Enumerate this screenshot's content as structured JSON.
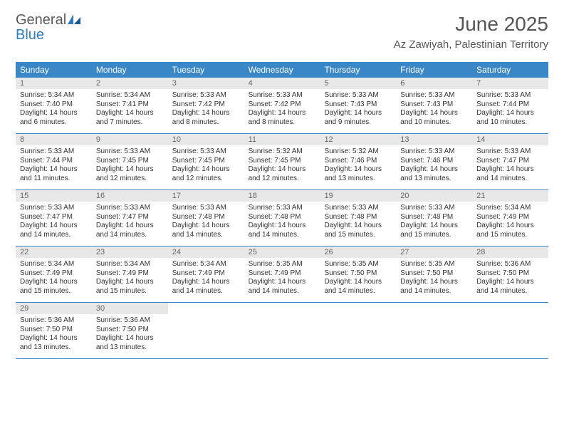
{
  "brand": {
    "word1": "General",
    "word2": "Blue"
  },
  "title": "June 2025",
  "location": "Az Zawiyah, Palestinian Territory",
  "styling": {
    "header_bg": "#3a87c7",
    "header_text": "#ffffff",
    "daynum_bg": "#e8e8e8",
    "daynum_text": "#666666",
    "body_text": "#333333",
    "rule_color": "#3a87c7",
    "font_family": "Arial",
    "daynum_fontsize": 11,
    "body_fontsize": 10,
    "header_fontsize": 12,
    "title_fontsize": 28,
    "location_fontsize": 15,
    "title_color": "#555555"
  },
  "day_headers": [
    "Sunday",
    "Monday",
    "Tuesday",
    "Wednesday",
    "Thursday",
    "Friday",
    "Saturday"
  ],
  "weeks": [
    [
      {
        "n": "1",
        "sr": "Sunrise: 5:34 AM",
        "ss": "Sunset: 7:40 PM",
        "d1": "Daylight: 14 hours",
        "d2": "and 6 minutes."
      },
      {
        "n": "2",
        "sr": "Sunrise: 5:34 AM",
        "ss": "Sunset: 7:41 PM",
        "d1": "Daylight: 14 hours",
        "d2": "and 7 minutes."
      },
      {
        "n": "3",
        "sr": "Sunrise: 5:33 AM",
        "ss": "Sunset: 7:42 PM",
        "d1": "Daylight: 14 hours",
        "d2": "and 8 minutes."
      },
      {
        "n": "4",
        "sr": "Sunrise: 5:33 AM",
        "ss": "Sunset: 7:42 PM",
        "d1": "Daylight: 14 hours",
        "d2": "and 8 minutes."
      },
      {
        "n": "5",
        "sr": "Sunrise: 5:33 AM",
        "ss": "Sunset: 7:43 PM",
        "d1": "Daylight: 14 hours",
        "d2": "and 9 minutes."
      },
      {
        "n": "6",
        "sr": "Sunrise: 5:33 AM",
        "ss": "Sunset: 7:43 PM",
        "d1": "Daylight: 14 hours",
        "d2": "and 10 minutes."
      },
      {
        "n": "7",
        "sr": "Sunrise: 5:33 AM",
        "ss": "Sunset: 7:44 PM",
        "d1": "Daylight: 14 hours",
        "d2": "and 10 minutes."
      }
    ],
    [
      {
        "n": "8",
        "sr": "Sunrise: 5:33 AM",
        "ss": "Sunset: 7:44 PM",
        "d1": "Daylight: 14 hours",
        "d2": "and 11 minutes."
      },
      {
        "n": "9",
        "sr": "Sunrise: 5:33 AM",
        "ss": "Sunset: 7:45 PM",
        "d1": "Daylight: 14 hours",
        "d2": "and 12 minutes."
      },
      {
        "n": "10",
        "sr": "Sunrise: 5:33 AM",
        "ss": "Sunset: 7:45 PM",
        "d1": "Daylight: 14 hours",
        "d2": "and 12 minutes."
      },
      {
        "n": "11",
        "sr": "Sunrise: 5:32 AM",
        "ss": "Sunset: 7:45 PM",
        "d1": "Daylight: 14 hours",
        "d2": "and 12 minutes."
      },
      {
        "n": "12",
        "sr": "Sunrise: 5:32 AM",
        "ss": "Sunset: 7:46 PM",
        "d1": "Daylight: 14 hours",
        "d2": "and 13 minutes."
      },
      {
        "n": "13",
        "sr": "Sunrise: 5:33 AM",
        "ss": "Sunset: 7:46 PM",
        "d1": "Daylight: 14 hours",
        "d2": "and 13 minutes."
      },
      {
        "n": "14",
        "sr": "Sunrise: 5:33 AM",
        "ss": "Sunset: 7:47 PM",
        "d1": "Daylight: 14 hours",
        "d2": "and 14 minutes."
      }
    ],
    [
      {
        "n": "15",
        "sr": "Sunrise: 5:33 AM",
        "ss": "Sunset: 7:47 PM",
        "d1": "Daylight: 14 hours",
        "d2": "and 14 minutes."
      },
      {
        "n": "16",
        "sr": "Sunrise: 5:33 AM",
        "ss": "Sunset: 7:47 PM",
        "d1": "Daylight: 14 hours",
        "d2": "and 14 minutes."
      },
      {
        "n": "17",
        "sr": "Sunrise: 5:33 AM",
        "ss": "Sunset: 7:48 PM",
        "d1": "Daylight: 14 hours",
        "d2": "and 14 minutes."
      },
      {
        "n": "18",
        "sr": "Sunrise: 5:33 AM",
        "ss": "Sunset: 7:48 PM",
        "d1": "Daylight: 14 hours",
        "d2": "and 14 minutes."
      },
      {
        "n": "19",
        "sr": "Sunrise: 5:33 AM",
        "ss": "Sunset: 7:48 PM",
        "d1": "Daylight: 14 hours",
        "d2": "and 15 minutes."
      },
      {
        "n": "20",
        "sr": "Sunrise: 5:33 AM",
        "ss": "Sunset: 7:48 PM",
        "d1": "Daylight: 14 hours",
        "d2": "and 15 minutes."
      },
      {
        "n": "21",
        "sr": "Sunrise: 5:34 AM",
        "ss": "Sunset: 7:49 PM",
        "d1": "Daylight: 14 hours",
        "d2": "and 15 minutes."
      }
    ],
    [
      {
        "n": "22",
        "sr": "Sunrise: 5:34 AM",
        "ss": "Sunset: 7:49 PM",
        "d1": "Daylight: 14 hours",
        "d2": "and 15 minutes."
      },
      {
        "n": "23",
        "sr": "Sunrise: 5:34 AM",
        "ss": "Sunset: 7:49 PM",
        "d1": "Daylight: 14 hours",
        "d2": "and 15 minutes."
      },
      {
        "n": "24",
        "sr": "Sunrise: 5:34 AM",
        "ss": "Sunset: 7:49 PM",
        "d1": "Daylight: 14 hours",
        "d2": "and 14 minutes."
      },
      {
        "n": "25",
        "sr": "Sunrise: 5:35 AM",
        "ss": "Sunset: 7:49 PM",
        "d1": "Daylight: 14 hours",
        "d2": "and 14 minutes."
      },
      {
        "n": "26",
        "sr": "Sunrise: 5:35 AM",
        "ss": "Sunset: 7:50 PM",
        "d1": "Daylight: 14 hours",
        "d2": "and 14 minutes."
      },
      {
        "n": "27",
        "sr": "Sunrise: 5:35 AM",
        "ss": "Sunset: 7:50 PM",
        "d1": "Daylight: 14 hours",
        "d2": "and 14 minutes."
      },
      {
        "n": "28",
        "sr": "Sunrise: 5:36 AM",
        "ss": "Sunset: 7:50 PM",
        "d1": "Daylight: 14 hours",
        "d2": "and 14 minutes."
      }
    ],
    [
      {
        "n": "29",
        "sr": "Sunrise: 5:36 AM",
        "ss": "Sunset: 7:50 PM",
        "d1": "Daylight: 14 hours",
        "d2": "and 13 minutes."
      },
      {
        "n": "30",
        "sr": "Sunrise: 5:36 AM",
        "ss": "Sunset: 7:50 PM",
        "d1": "Daylight: 14 hours",
        "d2": "and 13 minutes."
      },
      null,
      null,
      null,
      null,
      null
    ]
  ]
}
